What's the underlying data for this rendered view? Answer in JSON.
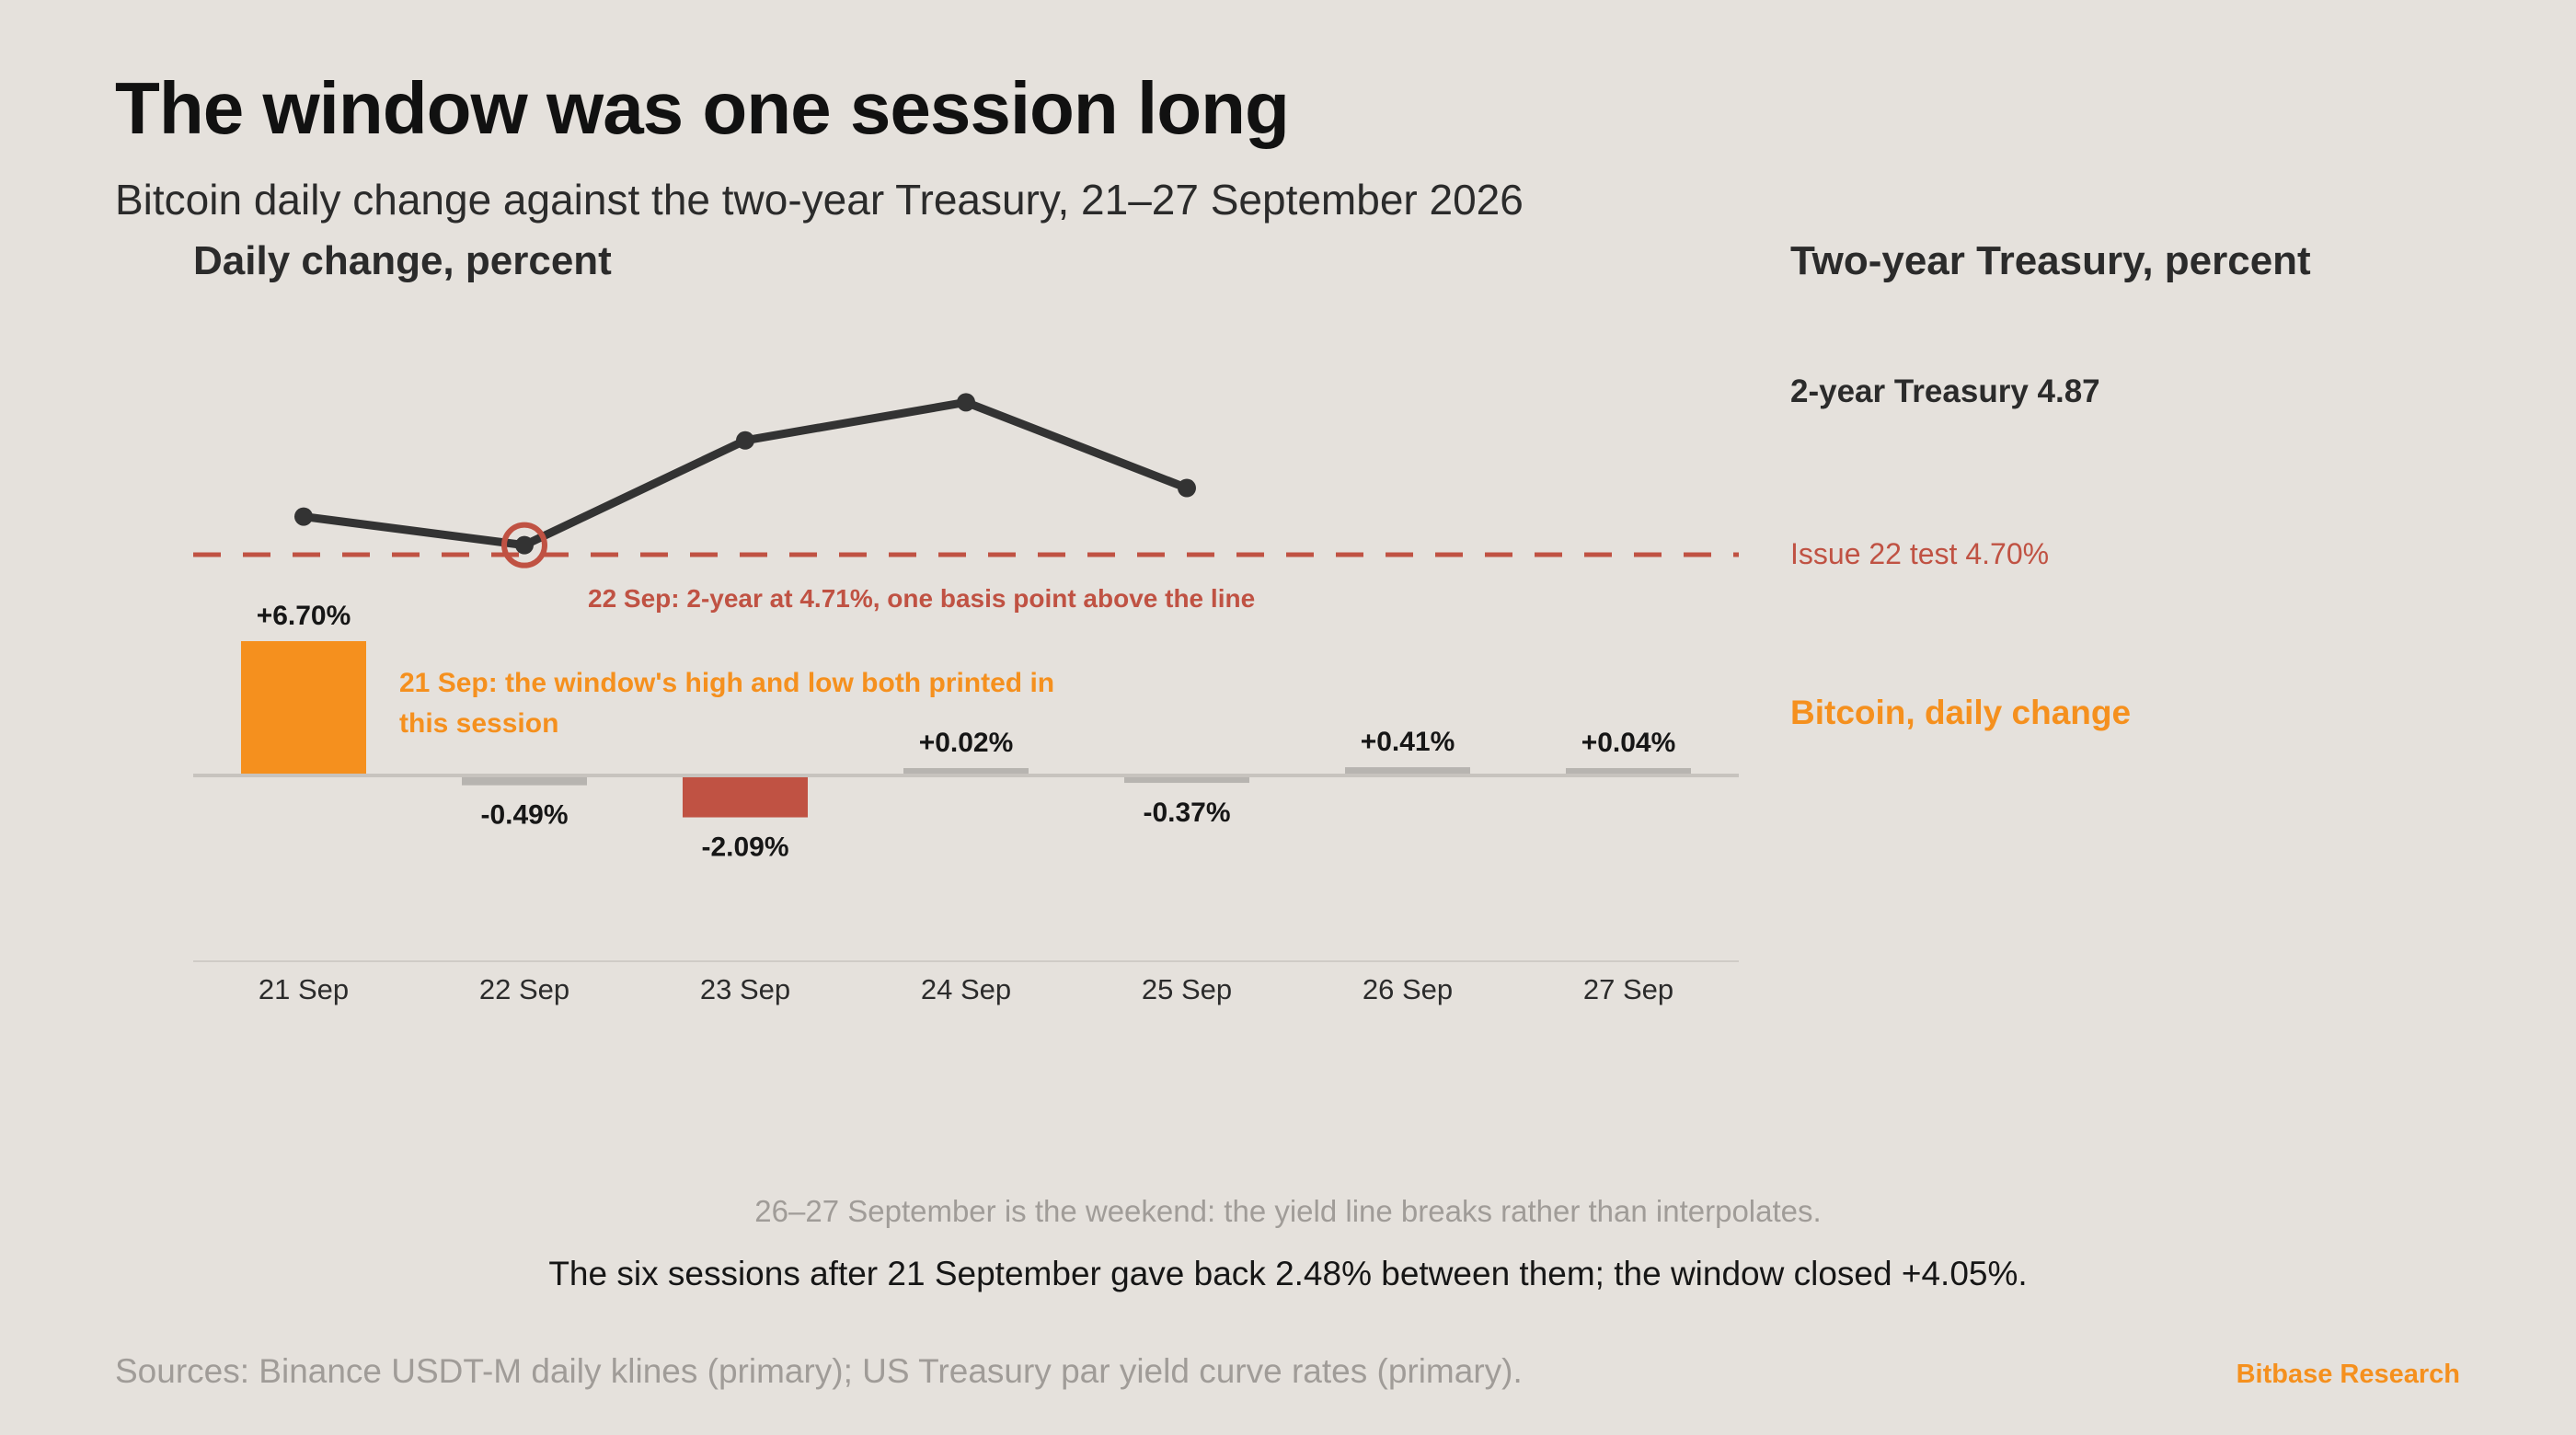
{
  "header": {
    "title": "The window was one session long",
    "subtitle": "Bitcoin daily change against the two-year Treasury, 21–27 September 2026"
  },
  "panels": {
    "left_label": "Daily change, percent",
    "right_label": "Two-year Treasury, percent"
  },
  "legend": {
    "yield": "2-year Treasury 4.87",
    "threshold": "Issue 22 test 4.70%",
    "btc": "Bitcoin, daily change"
  },
  "annotations": {
    "yield_note": "22 Sep: 2-year at 4.71%, one basis point above the line",
    "btc_note_line1": "21 Sep: the window's high and low both printed in",
    "btc_note_line2": "this session"
  },
  "footer": {
    "weekend_note": "26–27 September is the weekend: the yield line breaks rather than interpolates.",
    "takeaway": "The six sessions after 21 September gave back 2.48% between them; the window closed +4.05%.",
    "sources": "Sources: Binance USDT-M daily klines (primary); US Treasury par yield curve rates (primary).",
    "brand": "Bitbase Research"
  },
  "colors": {
    "background": "#e5e1dc",
    "btc_up_highlight": "#f5901e",
    "btc_down_highlight": "#c05243",
    "bar_neutral": "#b7b4b0",
    "yield_line": "#333333",
    "threshold": "#c05243"
  },
  "chart_data": {
    "type": "bar+line",
    "categories": [
      "21 Sep",
      "22 Sep",
      "23 Sep",
      "24 Sep",
      "25 Sep",
      "26 Sep",
      "27 Sep"
    ],
    "series": [
      {
        "name": "Bitcoin, daily change",
        "type": "bar",
        "values": [
          6.7,
          -0.49,
          -2.09,
          0.02,
          -0.37,
          0.41,
          0.04
        ],
        "labels": [
          "+6.70%",
          "-0.49%",
          "-2.09%",
          "+0.02%",
          "-0.37%",
          "+0.41%",
          "+0.04%"
        ],
        "highlight": [
          "up",
          "none",
          "down",
          "none",
          "none",
          "none",
          "none"
        ]
      },
      {
        "name": "2-year Treasury",
        "type": "line",
        "values": [
          4.74,
          4.71,
          4.82,
          4.86,
          4.77,
          null,
          null
        ]
      }
    ],
    "threshold": {
      "value": 4.7,
      "label": "Issue 22 test 4.70%"
    },
    "bar_ylim": [
      -9,
      6.7
    ],
    "yield_ylim": [
      4.7,
      4.87
    ],
    "highlight_point": "22 Sep"
  }
}
